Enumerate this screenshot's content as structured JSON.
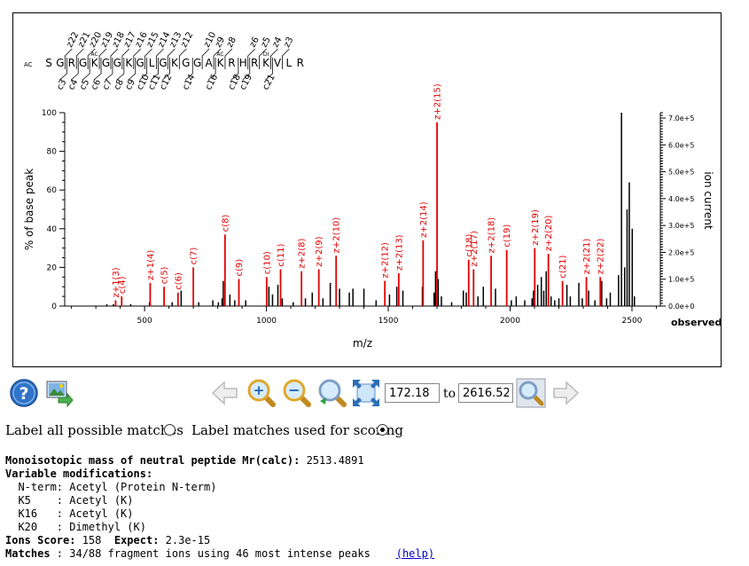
{
  "peptide": {
    "prefix": "AC",
    "residues": [
      "S",
      "G",
      "R",
      "G",
      "K",
      "G",
      "G",
      "K",
      "G",
      "L",
      "G",
      "K",
      "G",
      "G",
      "A",
      "K",
      "R",
      "H",
      "R",
      "K",
      "V",
      "L",
      "R"
    ],
    "mods": [
      {
        "pos": 4,
        "label": "AC"
      },
      {
        "pos": 15,
        "label": "AC"
      },
      {
        "pos": 19,
        "label": "DI"
      }
    ],
    "c_ions": [
      {
        "after": 1,
        "label": "c3"
      },
      {
        "after": 2,
        "label": "c4"
      },
      {
        "after": 3,
        "label": "c5"
      },
      {
        "after": 4,
        "label": "c6"
      },
      {
        "after": 5,
        "label": "c7"
      },
      {
        "after": 6,
        "label": "c8"
      },
      {
        "after": 7,
        "label": "c9"
      },
      {
        "after": 8,
        "label": "c10"
      },
      {
        "after": 9,
        "label": "c11"
      },
      {
        "after": 10,
        "label": "c12"
      },
      {
        "after": 12,
        "label": "c14"
      },
      {
        "after": 14,
        "label": "c16"
      },
      {
        "after": 16,
        "label": "c18"
      },
      {
        "after": 17,
        "label": "c19"
      },
      {
        "after": 19,
        "label": "c21"
      }
    ],
    "z_ions": [
      {
        "after": 1,
        "label": "z22"
      },
      {
        "after": 2,
        "label": "z21"
      },
      {
        "after": 3,
        "label": "z20"
      },
      {
        "after": 4,
        "label": "z19"
      },
      {
        "after": 5,
        "label": "z18"
      },
      {
        "after": 6,
        "label": "z17"
      },
      {
        "after": 7,
        "label": "z16"
      },
      {
        "after": 8,
        "label": "z15"
      },
      {
        "after": 9,
        "label": "z14"
      },
      {
        "after": 10,
        "label": "z13"
      },
      {
        "after": 11,
        "label": "z12"
      },
      {
        "after": 13,
        "label": "z10"
      },
      {
        "after": 14,
        "label": "z9"
      },
      {
        "after": 15,
        "label": "z8"
      },
      {
        "after": 17,
        "label": "z6"
      },
      {
        "after": 18,
        "label": "z5"
      },
      {
        "after": 19,
        "label": "z4"
      },
      {
        "after": 20,
        "label": "z3"
      }
    ]
  },
  "chart_data": {
    "type": "bar",
    "xlabel": "m/z",
    "ylabel": "% of base peak",
    "y2label": "ion current",
    "y2unit_label": "observed",
    "xlim": [
      172.18,
      2616.52
    ],
    "ylim": [
      0,
      100
    ],
    "xticks": [
      500,
      1000,
      1500,
      2000,
      2500
    ],
    "yticks": [
      0,
      20,
      40,
      60,
      80,
      100
    ],
    "y2ticks": [
      "0.0e+0",
      "1.0e+5",
      "2.0e+5",
      "3.0e+5",
      "4.0e+5",
      "5.0e+5",
      "6.0e+5",
      "7.0e+5"
    ],
    "y2max": 720000,
    "matched_peaks": [
      {
        "mz": 381,
        "y": 3,
        "label": "z+1(3)"
      },
      {
        "mz": 406,
        "y": 5,
        "label": "c(4)"
      },
      {
        "mz": 523,
        "y": 12,
        "label": "z+1(4)"
      },
      {
        "mz": 580,
        "y": 10,
        "label": "c(5)"
      },
      {
        "mz": 637,
        "y": 7,
        "label": "c(6)"
      },
      {
        "mz": 700,
        "y": 20,
        "label": "c(7)"
      },
      {
        "mz": 830,
        "y": 37,
        "label": "c(8)"
      },
      {
        "mz": 887,
        "y": 14,
        "label": "c(9)"
      },
      {
        "mz": 1001,
        "y": 15,
        "label": "c(10)"
      },
      {
        "mz": 1058,
        "y": 19,
        "label": "c(11)"
      },
      {
        "mz": 1144,
        "y": 18,
        "label": "z+2(8)"
      },
      {
        "mz": 1215,
        "y": 19,
        "label": "z+2(9)"
      },
      {
        "mz": 1286,
        "y": 26,
        "label": "z+2(10)"
      },
      {
        "mz": 1486,
        "y": 13,
        "label": "z+2(12)"
      },
      {
        "mz": 1543,
        "y": 17,
        "label": "z+2(13)"
      },
      {
        "mz": 1643,
        "y": 34,
        "label": "z+2(14)"
      },
      {
        "mz": 1700,
        "y": 95,
        "label": "z+2(15)"
      },
      {
        "mz": 1830,
        "y": 24,
        "label": "c(18)"
      },
      {
        "mz": 1850,
        "y": 19,
        "label": "z+2(17)"
      },
      {
        "mz": 1922,
        "y": 26,
        "label": "z+2(18)"
      },
      {
        "mz": 1986,
        "y": 29,
        "label": "c(19)"
      },
      {
        "mz": 2101,
        "y": 30,
        "label": "z+2(19)"
      },
      {
        "mz": 2157,
        "y": 27,
        "label": "z+2(20)"
      },
      {
        "mz": 2215,
        "y": 13,
        "label": "c(21)"
      },
      {
        "mz": 2313,
        "y": 15,
        "label": "z+2(21)"
      },
      {
        "mz": 2370,
        "y": 15,
        "label": "z+2(22)"
      }
    ],
    "other_peaks": [
      [
        345,
        1
      ],
      [
        372,
        1
      ],
      [
        443,
        1
      ],
      [
        520,
        2
      ],
      [
        613,
        2
      ],
      [
        650,
        8
      ],
      [
        722,
        2
      ],
      [
        780,
        3
      ],
      [
        803,
        2
      ],
      [
        818,
        4
      ],
      [
        823,
        13
      ],
      [
        850,
        6
      ],
      [
        870,
        3
      ],
      [
        915,
        3
      ],
      [
        1010,
        10
      ],
      [
        1025,
        6
      ],
      [
        1047,
        11
      ],
      [
        1065,
        4
      ],
      [
        1110,
        2
      ],
      [
        1160,
        4
      ],
      [
        1188,
        7
      ],
      [
        1232,
        4
      ],
      [
        1262,
        12
      ],
      [
        1300,
        9
      ],
      [
        1340,
        7
      ],
      [
        1355,
        9
      ],
      [
        1400,
        9
      ],
      [
        1450,
        3
      ],
      [
        1505,
        6
      ],
      [
        1535,
        10
      ],
      [
        1560,
        8
      ],
      [
        1640,
        10
      ],
      [
        1688,
        7
      ],
      [
        1694,
        18
      ],
      [
        1705,
        14
      ],
      [
        1718,
        5
      ],
      [
        1760,
        2
      ],
      [
        1808,
        8
      ],
      [
        1820,
        7
      ],
      [
        1868,
        5
      ],
      [
        1890,
        10
      ],
      [
        1940,
        9
      ],
      [
        2005,
        3
      ],
      [
        2025,
        5
      ],
      [
        2060,
        3
      ],
      [
        2090,
        4
      ],
      [
        2096,
        8
      ],
      [
        2113,
        11
      ],
      [
        2128,
        15
      ],
      [
        2138,
        8
      ],
      [
        2148,
        18
      ],
      [
        2168,
        5
      ],
      [
        2183,
        3
      ],
      [
        2200,
        4
      ],
      [
        2233,
        11
      ],
      [
        2247,
        5
      ],
      [
        2282,
        12
      ],
      [
        2296,
        4
      ],
      [
        2322,
        8
      ],
      [
        2348,
        3
      ],
      [
        2376,
        13
      ],
      [
        2396,
        4
      ],
      [
        2411,
        7
      ],
      [
        2445,
        16
      ],
      [
        2457,
        100
      ],
      [
        2470,
        20
      ],
      [
        2480,
        50
      ],
      [
        2489,
        64
      ],
      [
        2501,
        40
      ],
      [
        2510,
        5
      ]
    ]
  },
  "controls": {
    "range_from": "172.18",
    "range_to": "2616.52",
    "to_label": "to",
    "radio_all_label": "Label all possible matches",
    "radio_scoring_label": "Label matches used for scoring"
  },
  "info": {
    "mass_label": "Monoisotopic mass of neutral peptide Mr(calc):",
    "mass_value": " 2513.4891",
    "varmods_label": "Variable modifications:",
    "mods": [
      {
        "site": "  N-term",
        "desc": ": Acetyl (Protein N-term)"
      },
      {
        "site": "  K5    ",
        "desc": ": Acetyl (K)"
      },
      {
        "site": "  K16   ",
        "desc": ": Acetyl (K)"
      },
      {
        "site": "  K20   ",
        "desc": ": Dimethyl (K)"
      }
    ],
    "score_label": "Ions Score:",
    "score_value": " 158  ",
    "expect_label": "Expect:",
    "expect_value": " 2.3e-15",
    "matches_label": "Matches",
    "matches_value": " : 34/88 fragment ions using 46 most intense peaks    ",
    "help_text": "(help)"
  }
}
